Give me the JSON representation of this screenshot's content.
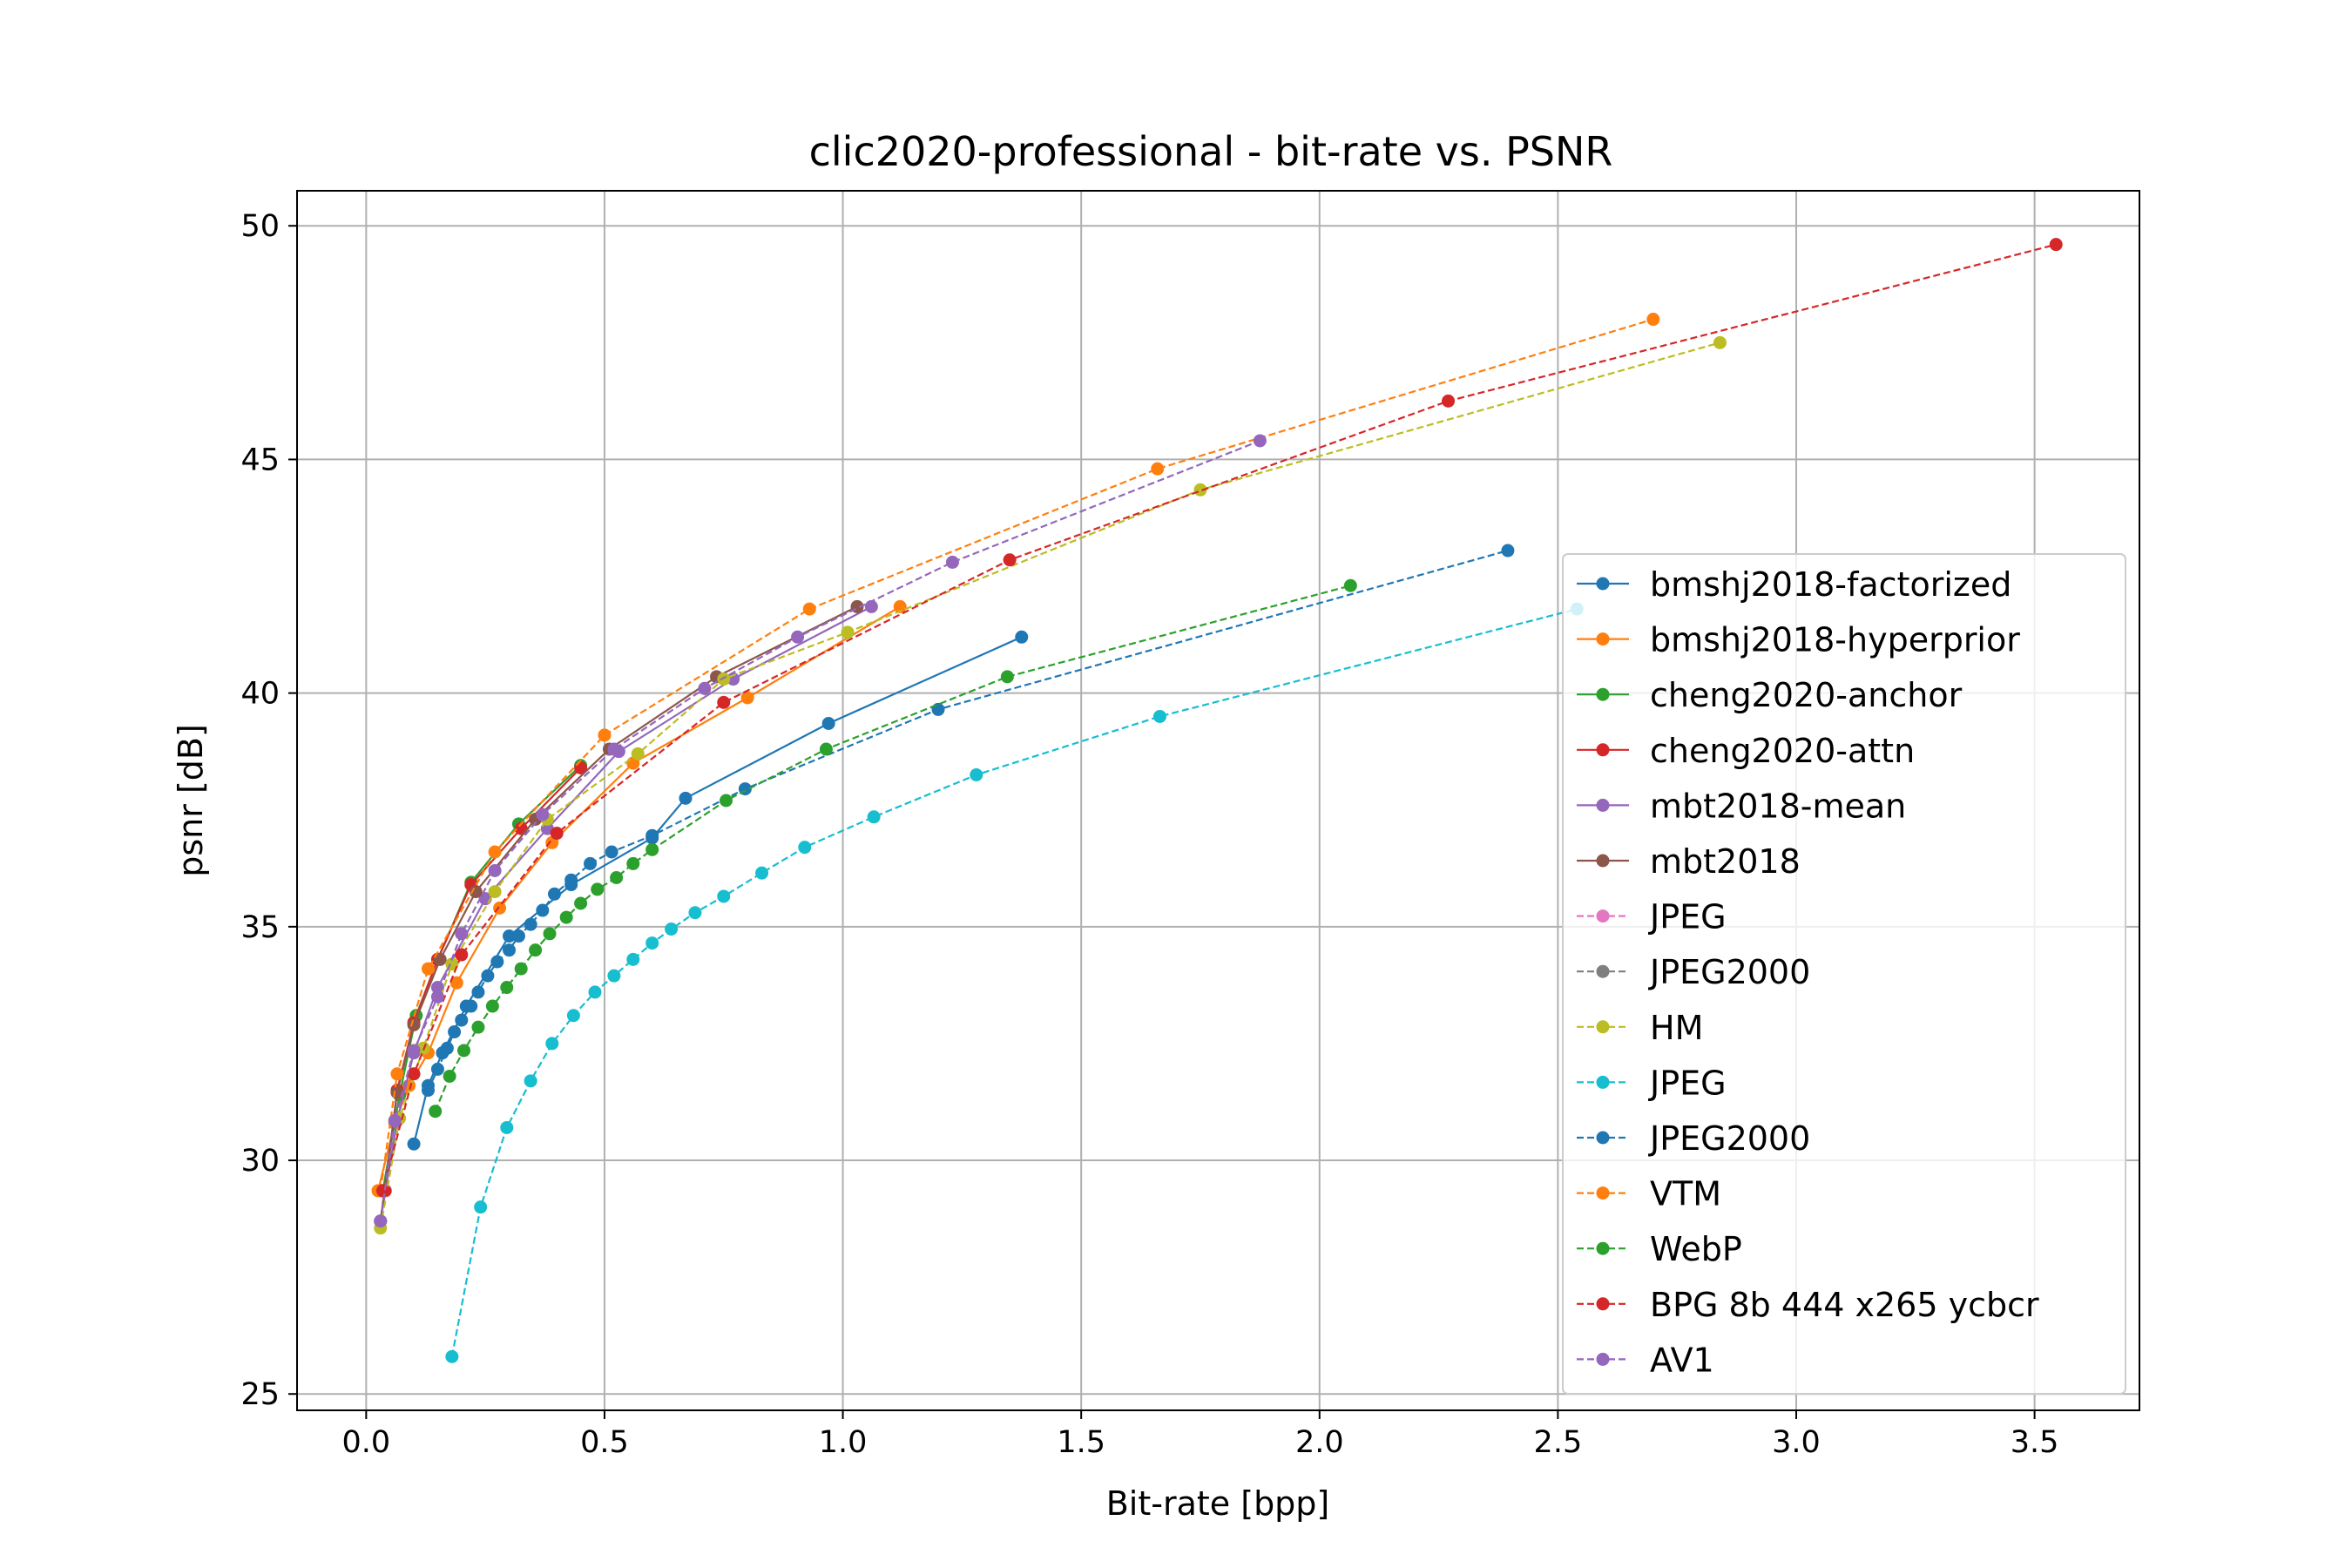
{
  "chart_data": {
    "type": "line",
    "title": "clic2020-professional - bit-rate vs. PSNR",
    "xlabel": "Bit-rate [bpp]",
    "ylabel": "psnr [dB]",
    "xlim": [
      -0.145,
      3.72
    ],
    "ylim": [
      24.65,
      50.75
    ],
    "xticks": [
      0.0,
      0.5,
      1.0,
      1.5,
      2.0,
      2.5,
      3.0,
      3.5
    ],
    "xtick_labels": [
      "0.0",
      "0.5",
      "1.0",
      "1.5",
      "2.0",
      "2.5",
      "3.0",
      "3.5"
    ],
    "yticks": [
      25,
      30,
      35,
      40,
      45,
      50
    ],
    "ytick_labels": [
      "25",
      "30",
      "35",
      "40",
      "45",
      "50"
    ],
    "grid": true,
    "legend_position": "center-right",
    "series": [
      {
        "name": "bmshj2018-factorized",
        "color": "#1f77b4",
        "dashed": false,
        "x": [
          0.1,
          0.13,
          0.16,
          0.21,
          0.3,
          0.43,
          0.6,
          0.67,
          0.97,
          1.375
        ],
        "y": [
          30.35,
          31.6,
          32.3,
          33.3,
          34.8,
          35.9,
          36.9,
          37.75,
          39.35,
          41.2
        ]
      },
      {
        "name": "bmshj2018-hyperprior",
        "color": "#ff7f0e",
        "dashed": false,
        "x": [
          0.025,
          0.06,
          0.09,
          0.13,
          0.19,
          0.28,
          0.39,
          0.56,
          0.8,
          1.12
        ],
        "y": [
          29.35,
          30.8,
          31.6,
          32.3,
          33.8,
          35.4,
          36.8,
          38.5,
          39.9,
          41.85
        ]
      },
      {
        "name": "cheng2020-anchor",
        "color": "#2ca02c",
        "dashed": false,
        "x": [
          0.035,
          0.07,
          0.105,
          0.15,
          0.22,
          0.32,
          0.45
        ],
        "y": [
          29.35,
          31.4,
          33.1,
          34.3,
          35.95,
          37.2,
          38.45
        ]
      },
      {
        "name": "cheng2020-attn",
        "color": "#d62728",
        "dashed": false,
        "x": [
          0.04,
          0.065,
          0.1,
          0.15,
          0.22,
          0.325,
          0.45
        ],
        "y": [
          29.35,
          31.5,
          32.95,
          34.3,
          35.9,
          37.1,
          38.4
        ]
      },
      {
        "name": "mbt2018-mean",
        "color": "#9467bd",
        "dashed": false,
        "x": [
          0.03,
          0.065,
          0.1,
          0.15,
          0.25,
          0.38,
          0.53,
          0.77,
          1.06
        ],
        "y": [
          28.7,
          30.85,
          32.3,
          33.7,
          35.6,
          37.1,
          38.75,
          40.3,
          41.85
        ]
      },
      {
        "name": "mbt2018",
        "color": "#8c564b",
        "dashed": false,
        "x": [
          0.03,
          0.065,
          0.1,
          0.155,
          0.23,
          0.355,
          0.51,
          0.735,
          1.03
        ],
        "y": [
          28.7,
          31.45,
          32.9,
          34.3,
          35.75,
          37.3,
          38.8,
          40.35,
          41.85
        ]
      },
      {
        "name": "JPEG",
        "color": "#e377c2",
        "dashed": true,
        "x": [],
        "y": []
      },
      {
        "name": "JPEG2000",
        "color": "#7f7f7f",
        "dashed": true,
        "x": [],
        "y": []
      },
      {
        "name": "HM",
        "color": "#bcbd22",
        "dashed": true,
        "x": [
          0.03,
          0.07,
          0.12,
          0.18,
          0.27,
          0.38,
          0.57,
          0.75,
          1.01,
          1.75,
          2.84
        ],
        "y": [
          28.55,
          30.9,
          32.4,
          34.2,
          35.75,
          37.3,
          38.7,
          40.3,
          41.3,
          44.35,
          47.5
        ]
      },
      {
        "name": "JPEG",
        "color": "#17becf",
        "dashed": true,
        "x": [
          0.18,
          0.24,
          0.295,
          0.345,
          0.39,
          0.435,
          0.48,
          0.52,
          0.56,
          0.6,
          0.64,
          0.69,
          0.75,
          0.83,
          0.92,
          1.065,
          1.28,
          1.665,
          2.54
        ],
        "y": [
          25.8,
          29.0,
          30.7,
          31.7,
          32.5,
          33.1,
          33.6,
          33.95,
          34.3,
          34.65,
          34.95,
          35.3,
          35.65,
          36.15,
          36.7,
          37.35,
          38.25,
          39.5,
          41.8
        ]
      },
      {
        "name": "JPEG2000",
        "color": "#1f77b4",
        "dashed": true,
        "x": [
          0.13,
          0.15,
          0.17,
          0.185,
          0.2,
          0.22,
          0.235,
          0.255,
          0.275,
          0.3,
          0.32,
          0.345,
          0.37,
          0.395,
          0.43,
          0.47,
          0.515,
          0.6,
          0.795,
          1.2,
          2.395
        ],
        "y": [
          31.5,
          31.95,
          32.4,
          32.75,
          33.0,
          33.3,
          33.6,
          33.95,
          34.25,
          34.5,
          34.8,
          35.05,
          35.35,
          35.7,
          36.0,
          36.35,
          36.6,
          36.95,
          37.95,
          39.65,
          43.05
        ]
      },
      {
        "name": "VTM",
        "color": "#ff7f0e",
        "dashed": true,
        "x": [
          0.03,
          0.065,
          0.13,
          0.27,
          0.5,
          0.93,
          1.66,
          2.7
        ],
        "y": [
          29.35,
          31.85,
          34.1,
          36.6,
          39.1,
          41.8,
          44.8,
          48.0
        ]
      },
      {
        "name": "WebP",
        "color": "#2ca02c",
        "dashed": true,
        "x": [
          0.145,
          0.175,
          0.205,
          0.235,
          0.265,
          0.295,
          0.325,
          0.355,
          0.385,
          0.42,
          0.45,
          0.485,
          0.525,
          0.56,
          0.6,
          0.755,
          0.965,
          1.345,
          2.065
        ],
        "y": [
          31.05,
          31.8,
          32.35,
          32.85,
          33.3,
          33.7,
          34.1,
          34.5,
          34.85,
          35.2,
          35.5,
          35.8,
          36.05,
          36.35,
          36.65,
          37.7,
          38.8,
          40.35,
          42.3
        ]
      },
      {
        "name": "BPG 8b 444 x265 ycbcr",
        "color": "#d62728",
        "dashed": true,
        "x": [
          0.035,
          0.1,
          0.2,
          0.4,
          0.75,
          1.35,
          2.27,
          3.545
        ],
        "y": [
          29.35,
          31.85,
          34.4,
          37.0,
          39.8,
          42.85,
          46.25,
          49.6
        ]
      },
      {
        "name": "AV1",
        "color": "#9467bd",
        "dashed": true,
        "x": [
          0.03,
          0.06,
          0.1,
          0.15,
          0.2,
          0.27,
          0.37,
          0.52,
          0.71,
          0.905,
          1.23,
          1.875
        ],
        "y": [
          28.7,
          30.85,
          32.35,
          33.5,
          34.85,
          36.2,
          37.4,
          38.8,
          40.1,
          41.2,
          42.8,
          45.4
        ]
      }
    ]
  }
}
